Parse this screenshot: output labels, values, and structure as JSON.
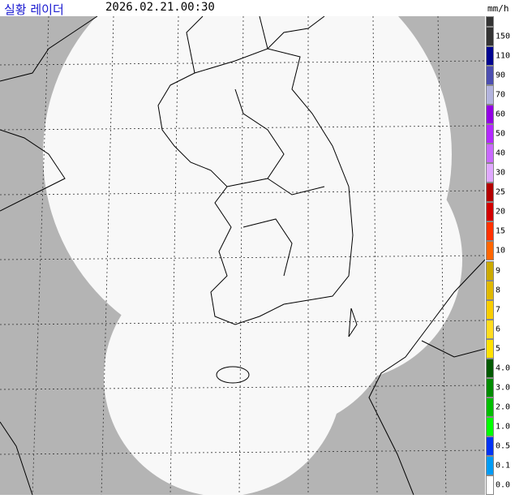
{
  "header": {
    "title": "실황 레이더",
    "timestamp": "2026.02.21.00:30",
    "unit": "mm/h"
  },
  "legend": {
    "items": [
      {
        "label": "150",
        "color": "#333333"
      },
      {
        "label": "110",
        "color": "#000390"
      },
      {
        "label": "90",
        "color": "#4c4eb1"
      },
      {
        "label": "70",
        "color": "#b3b4de"
      },
      {
        "label": "60",
        "color": "#9300e4"
      },
      {
        "label": "50",
        "color": "#b329ff"
      },
      {
        "label": "40",
        "color": "#c969ff"
      },
      {
        "label": "30",
        "color": "#e0a9ff"
      },
      {
        "label": "25",
        "color": "#b40000"
      },
      {
        "label": "20",
        "color": "#d20000"
      },
      {
        "label": "15",
        "color": "#ff3200"
      },
      {
        "label": "10",
        "color": "#ff6600"
      },
      {
        "label": "9",
        "color": "#ccaa00"
      },
      {
        "label": "8",
        "color": "#e0b900"
      },
      {
        "label": "7",
        "color": "#f9cd00"
      },
      {
        "label": "6",
        "color": "#ffdc1f"
      },
      {
        "label": "5",
        "color": "#ffe100"
      },
      {
        "label": "4.0",
        "color": "#005a00"
      },
      {
        "label": "3.0",
        "color": "#008c00"
      },
      {
        "label": "2.0",
        "color": "#00be00"
      },
      {
        "label": "1.0",
        "color": "#00ff00"
      },
      {
        "label": "0.5",
        "color": "#0033f5"
      },
      {
        "label": "0.1",
        "color": "#009bf5"
      },
      {
        "label": "0.0",
        "color": "#ffffff"
      }
    ]
  }
}
